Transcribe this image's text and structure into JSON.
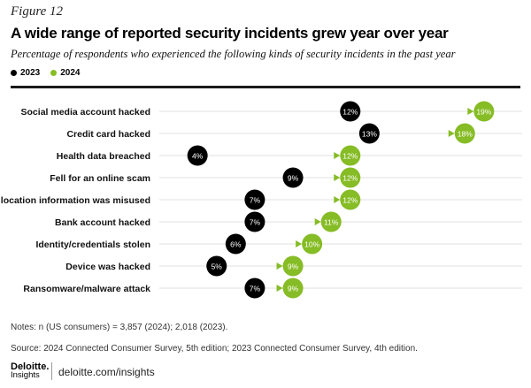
{
  "figure_label": "Figure 12",
  "title": "A wide range of reported security incidents grew year over year",
  "subtitle": "Percentage of respondents who experienced the following kinds of security incidents in the past year",
  "legend": [
    {
      "label": "2023",
      "color": "#000000"
    },
    {
      "label": "2024",
      "color": "#86bc25"
    }
  ],
  "chart_data": {
    "type": "dumbbell",
    "categories": [
      "Social media account hacked",
      "Credit card hacked",
      "Health data breached",
      "Fell for an online scam",
      "My location information was misused",
      "Bank account hacked",
      "Identity/credentials stolen",
      "Device was hacked",
      "Ransomware/malware attack"
    ],
    "series": [
      {
        "name": "2023",
        "values": [
          12,
          13,
          4,
          9,
          7,
          7,
          6,
          5,
          7
        ],
        "labels": [
          "12%",
          "13%",
          "4%",
          "9%",
          "7%",
          "7%",
          "6%",
          "5%",
          "7%"
        ],
        "color": "#000000"
      },
      {
        "name": "2024",
        "values": [
          19,
          18,
          12,
          12,
          12,
          11,
          10,
          9,
          9
        ],
        "labels": [
          "19%",
          "18%",
          "12%",
          "12%",
          "12%",
          "11%",
          "10%",
          "9%",
          "9%"
        ],
        "color": "#86bc25"
      }
    ],
    "xlim": [
      2,
      21
    ]
  },
  "notes": "Notes: n (US consumers) = 3,857 (2024); 2,018 (2023).",
  "source": "Source: 2024 Connected Consumer Survey, 5th edition; 2023 Connected Consumer Survey, 4th edition.",
  "brand": {
    "name": "Deloitte.",
    "sub": "Insights",
    "url": "deloitte.com/insights"
  }
}
